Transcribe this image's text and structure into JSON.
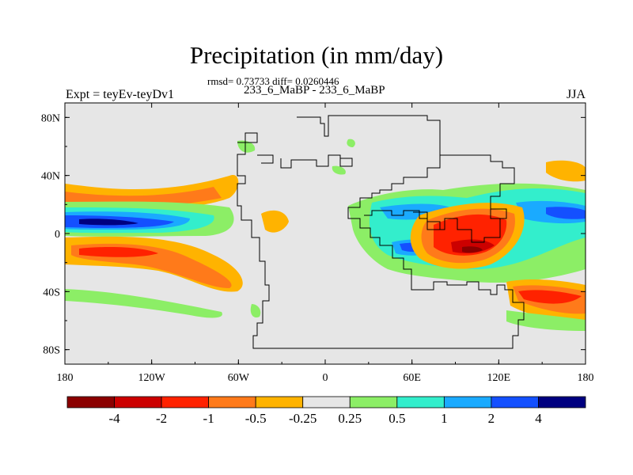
{
  "header": {
    "title": "Precipitation (in mm/day)",
    "stats": "rmsd= 0.73733 diff= 0.0260446",
    "experiment": "Expt = teyEv-teyDv1",
    "comparison": "233_6_MaBP - 233_6_MaBP",
    "season": "JJA"
  },
  "axes": {
    "x_ticks": [
      {
        "value": -180,
        "label": "180"
      },
      {
        "value": -120,
        "label": "120W"
      },
      {
        "value": -60,
        "label": "60W"
      },
      {
        "value": 0,
        "label": "0"
      },
      {
        "value": 60,
        "label": "60E"
      },
      {
        "value": 120,
        "label": "120E"
      },
      {
        "value": 180,
        "label": "180"
      }
    ],
    "y_ticks": [
      {
        "value": 80,
        "label": "80N"
      },
      {
        "value": 40,
        "label": "40N"
      },
      {
        "value": 0,
        "label": "0"
      },
      {
        "value": -40,
        "label": "40S"
      },
      {
        "value": -80,
        "label": "80S"
      }
    ],
    "lon_range": [
      -180,
      180
    ],
    "lat_range": [
      -90,
      90
    ]
  },
  "colorbar": {
    "colors": [
      "#8b0000",
      "#cc0000",
      "#ff2200",
      "#ff7a1a",
      "#ffb300",
      "#e6e6e6",
      "#8cee66",
      "#33eecc",
      "#1aaaff",
      "#1450ff",
      "#000080"
    ],
    "labels": [
      "-4",
      "-2",
      "-1",
      "-0.5",
      "-0.25",
      "0.25",
      "0.5",
      "1",
      "2",
      "4"
    ]
  },
  "colors": {
    "background": "#e6e6e6",
    "coastline": "#000000"
  }
}
